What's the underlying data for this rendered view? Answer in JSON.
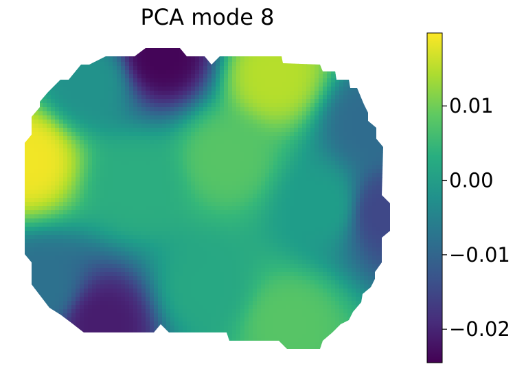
{
  "chart_data": {
    "type": "heatmap",
    "title": "PCA mode 8",
    "colormap": "viridis",
    "colorbar": {
      "range": [
        -0.0245,
        0.0198
      ],
      "ticks": [
        0.01,
        0.0,
        -0.01,
        -0.02
      ],
      "tick_labels": [
        "0.01",
        "0.00",
        "−0.01",
        "−0.02"
      ]
    },
    "axes_visible": false,
    "field_extrema": [
      {
        "region": "left edge",
        "value": 0.019
      },
      {
        "region": "top center-left",
        "value": -0.024
      },
      {
        "region": "bottom left",
        "value": -0.021
      },
      {
        "region": "top right of center",
        "value": 0.015
      },
      {
        "region": "right edge",
        "value": -0.015
      },
      {
        "region": "bottom right of center",
        "value": 0.008
      }
    ]
  }
}
